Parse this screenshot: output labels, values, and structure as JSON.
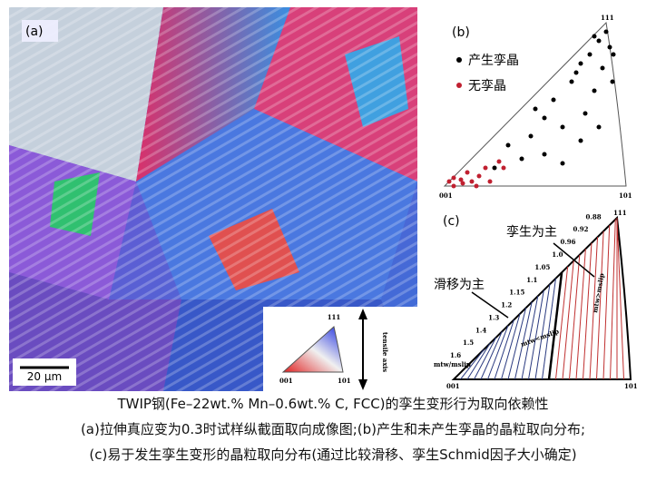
{
  "panel_a": {
    "label": "(a)",
    "scale_bar": "20 μm",
    "inset": {
      "corner_111": "111",
      "corner_001": "001",
      "corner_101": "101",
      "axis_label": "tensile axis"
    }
  },
  "panel_b": {
    "label": "(b)",
    "legend": [
      "产生孪晶",
      "无孪晶"
    ],
    "corner_111": "111",
    "corner_001": "001",
    "corner_101": "101"
  },
  "panel_c": {
    "label": "(c)",
    "twin_region": "孪生为主",
    "slip_region": "滑移为主",
    "contour_labels": [
      "0.88",
      "0.92",
      "0.96",
      "1.0",
      "1.05",
      "1.1",
      "1.15",
      "1.2",
      "1.3",
      "1.4",
      "1.5",
      "1.6"
    ],
    "ratio_label": "mtw/mslip",
    "twin_condition": "mtw>mslip",
    "slip_condition": "mtw<mslip",
    "corner_111": "111",
    "corner_001": "001",
    "corner_101": "101"
  },
  "caption": [
    "TWIP钢(Fe–22wt.% Mn–0.6wt.% C, FCC)的孪生变形行为取向依赖性",
    "(a)拉伸真应变为0.3时试样纵截面取向成像图;(b)产生和未产生孪晶的晶粒取向分布;",
    "(c)易于发生孪生变形的晶粒取向分布(通过比较滑移、孪生Schmid因子大小确定)"
  ]
}
